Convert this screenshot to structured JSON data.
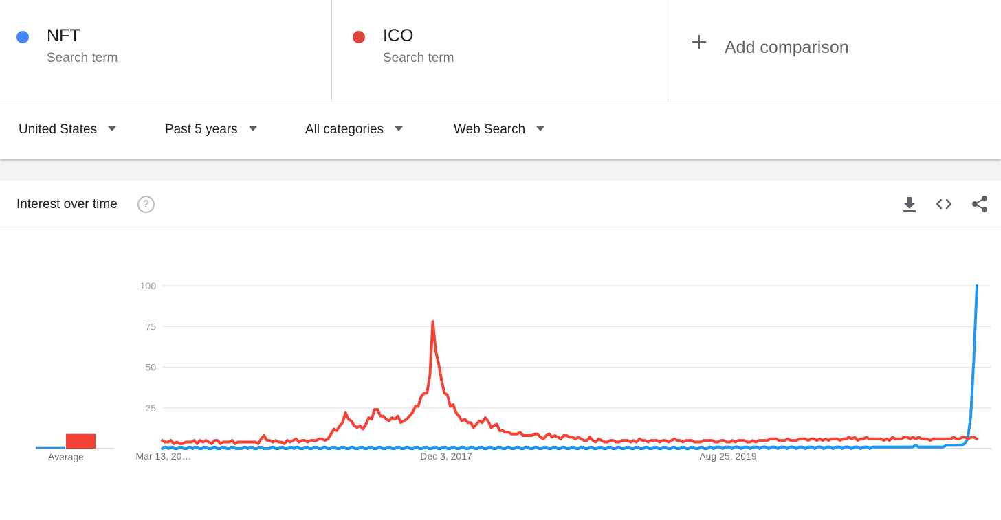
{
  "terms": [
    {
      "name": "NFT",
      "sub": "Search term",
      "color": "#4285f4"
    },
    {
      "name": "ICO",
      "sub": "Search term",
      "color": "#db4437"
    }
  ],
  "add_comparison": "Add comparison",
  "filters": {
    "region": "United States",
    "period": "Past 5 years",
    "category": "All categories",
    "property": "Web Search"
  },
  "card": {
    "title": "Interest over time",
    "help_symbol": "?",
    "icons": [
      "download-icon",
      "embed-code-icon",
      "share-icon"
    ]
  },
  "average_label": "Average",
  "colors": {
    "nft": "#2196f3",
    "ico": "#f44336",
    "grid": "#e0e0e0",
    "axis_text": "#9e9e9e"
  },
  "chart_data": {
    "type": "line",
    "yticks": [
      25,
      50,
      75,
      100
    ],
    "ylim": [
      0,
      100
    ],
    "x_tick_labels": [
      "Mar 13, 20…",
      "Dec 3, 2017",
      "Aug 25, 2019"
    ],
    "x_range": [
      "2016-03-13",
      "2021-03-07"
    ],
    "averages": [
      {
        "name": "NFT",
        "value": 1
      },
      {
        "name": "ICO",
        "value": 9
      }
    ],
    "series": [
      {
        "name": "NFT",
        "color": "#2196f3",
        "values": [
          0,
          1,
          0,
          1,
          0,
          0,
          1,
          0,
          0,
          1,
          0,
          1,
          0,
          0,
          1,
          0,
          0,
          1,
          0,
          0,
          1,
          0,
          0,
          1,
          0,
          0,
          0,
          1,
          0,
          1,
          0,
          0,
          1,
          0,
          0,
          0,
          1,
          0,
          0,
          1,
          0,
          0,
          1,
          0,
          1,
          0,
          0,
          1,
          0,
          0,
          1,
          0,
          0,
          1,
          0,
          0,
          1,
          0,
          0,
          1,
          0,
          0,
          1,
          0,
          0,
          1,
          0,
          0,
          1,
          0,
          0,
          1,
          0,
          0,
          1,
          0,
          0,
          1,
          0,
          0,
          1,
          0,
          0,
          1,
          0,
          0,
          1,
          0,
          0,
          1,
          0,
          0,
          1,
          0,
          0,
          1,
          0,
          0,
          1,
          0,
          0,
          1,
          0,
          0,
          1,
          0,
          0,
          1,
          0,
          0,
          1,
          0,
          0,
          1,
          0,
          0,
          1,
          0,
          0,
          1,
          0,
          0,
          1,
          0,
          0,
          1,
          0,
          0,
          1,
          0,
          0,
          1,
          0,
          0,
          1,
          0,
          0,
          1,
          0,
          0,
          1,
          0,
          0,
          1,
          0,
          0,
          1,
          0,
          0,
          1,
          0,
          0,
          1,
          0,
          0,
          1,
          0,
          0,
          1,
          0,
          0,
          1,
          0,
          0,
          1,
          0,
          0,
          1,
          0,
          0,
          1,
          0,
          0,
          1,
          0,
          0,
          1,
          0,
          0,
          1,
          0,
          1,
          1,
          0,
          1,
          1,
          0,
          1,
          1,
          0,
          1,
          1,
          0,
          1,
          1,
          0,
          1,
          1,
          0,
          1,
          1,
          0,
          1,
          1,
          0,
          1,
          1,
          0,
          1,
          1,
          0,
          1,
          1,
          0,
          1,
          1,
          0,
          1,
          1,
          0,
          1,
          1,
          0,
          1,
          1,
          0,
          1,
          1,
          0,
          1,
          1,
          0,
          1,
          1,
          1,
          1,
          1,
          1,
          1,
          1,
          1,
          1,
          1,
          1,
          1,
          1,
          2,
          1,
          1,
          1,
          1,
          1,
          1,
          1,
          1,
          1,
          2,
          2,
          2,
          2,
          2,
          2,
          3,
          6,
          20,
          55,
          100
        ]
      },
      {
        "name": "ICO",
        "color": "#f44336",
        "values": [
          5,
          4,
          4,
          5,
          3,
          4,
          3,
          3,
          4,
          4,
          4,
          5,
          3,
          5,
          4,
          5,
          4,
          3,
          5,
          5,
          3,
          4,
          4,
          4,
          5,
          3,
          4,
          4,
          4,
          4,
          4,
          4,
          4,
          3,
          6,
          8,
          5,
          5,
          4,
          5,
          4,
          4,
          3,
          5,
          4,
          5,
          6,
          4,
          5,
          5,
          4,
          5,
          5,
          5,
          6,
          6,
          5,
          6,
          9,
          12,
          11,
          14,
          16,
          22,
          18,
          17,
          14,
          13,
          14,
          12,
          15,
          19,
          18,
          24,
          24,
          20,
          20,
          18,
          17,
          19,
          18,
          20,
          16,
          17,
          18,
          20,
          22,
          26,
          26,
          32,
          34,
          34,
          45,
          78,
          60,
          52,
          42,
          34,
          33,
          26,
          27,
          22,
          20,
          17,
          18,
          16,
          16,
          13,
          15,
          17,
          16,
          19,
          17,
          13,
          14,
          15,
          11,
          11,
          10,
          10,
          9,
          9,
          9,
          10,
          8,
          8,
          8,
          8,
          9,
          9,
          7,
          6,
          8,
          9,
          7,
          8,
          7,
          6,
          8,
          8,
          7,
          7,
          6,
          7,
          6,
          5,
          5,
          7,
          5,
          4,
          6,
          5,
          4,
          4,
          5,
          5,
          4,
          4,
          5,
          5,
          5,
          4,
          5,
          4,
          6,
          5,
          5,
          4,
          5,
          5,
          5,
          4,
          5,
          5,
          4,
          5,
          6,
          5,
          5,
          4,
          5,
          5,
          5,
          4,
          4,
          4,
          5,
          5,
          5,
          5,
          4,
          4,
          5,
          5,
          4,
          4,
          5,
          4,
          5,
          5,
          5,
          4,
          4,
          5,
          4,
          5,
          5,
          5,
          5,
          6,
          6,
          6,
          5,
          5,
          5,
          6,
          5,
          5,
          5,
          6,
          6,
          6,
          5,
          6,
          6,
          5,
          6,
          5,
          6,
          5,
          6,
          6,
          6,
          5,
          6,
          6,
          7,
          6,
          7,
          5,
          6,
          6,
          7,
          6,
          6,
          6,
          6,
          6,
          5,
          6,
          5,
          7,
          6,
          6,
          6,
          7,
          7,
          6,
          7,
          6,
          7,
          6,
          6,
          6,
          5,
          6,
          6,
          6,
          6,
          6,
          6,
          6,
          7,
          6,
          6,
          7,
          7,
          6,
          7,
          7,
          6
        ]
      }
    ]
  }
}
